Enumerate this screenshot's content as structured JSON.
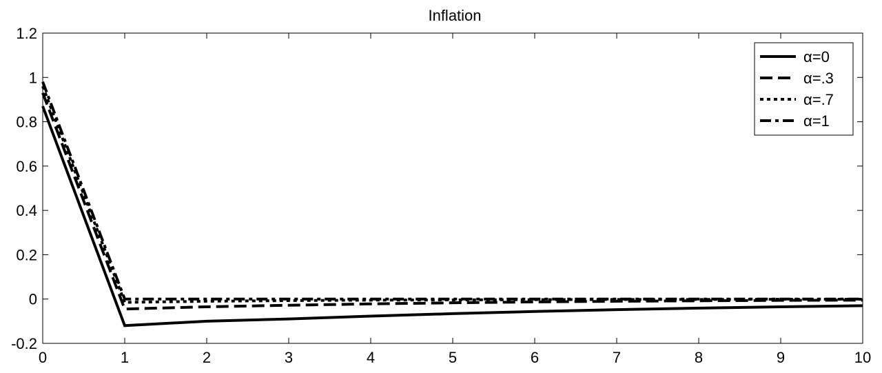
{
  "chart_data": {
    "type": "line",
    "title": "Inflation",
    "xlabel": "",
    "ylabel": "",
    "xlim": [
      0,
      10
    ],
    "ylim": [
      -0.2,
      1.2
    ],
    "x_ticks": [
      "0",
      "1",
      "2",
      "3",
      "4",
      "5",
      "6",
      "7",
      "8",
      "9",
      "10"
    ],
    "y_ticks": [
      "-0.2",
      "0",
      "0.2",
      "0.4",
      "0.6",
      "0.8",
      "1",
      "1.2"
    ],
    "grid": false,
    "legend_position": "top-right",
    "x": [
      0,
      1,
      2,
      3,
      4,
      5,
      6,
      7,
      8,
      9,
      10
    ],
    "series": [
      {
        "name": "α=0",
        "line_style": "solid",
        "color": "#000000",
        "values": [
          0.87,
          -0.12,
          -0.1,
          -0.09,
          -0.077,
          -0.066,
          -0.056,
          -0.048,
          -0.041,
          -0.035,
          -0.03
        ]
      },
      {
        "name": "α=.3",
        "line_style": "dashed",
        "color": "#000000",
        "values": [
          0.93,
          -0.045,
          -0.035,
          -0.028,
          -0.022,
          -0.017,
          -0.013,
          -0.01,
          -0.008,
          -0.006,
          -0.005
        ]
      },
      {
        "name": "α=.7",
        "line_style": "dotted",
        "color": "#000000",
        "values": [
          0.96,
          -0.015,
          -0.01,
          -0.007,
          -0.005,
          -0.004,
          -0.003,
          -0.002,
          -0.002,
          -0.001,
          -0.001
        ]
      },
      {
        "name": "α=1",
        "line_style": "dash-dot",
        "color": "#000000",
        "values": [
          0.98,
          0.0,
          0.0,
          0.0,
          0.0,
          0.0,
          0.0,
          0.0,
          0.0,
          0.0,
          0.0
        ]
      }
    ]
  }
}
